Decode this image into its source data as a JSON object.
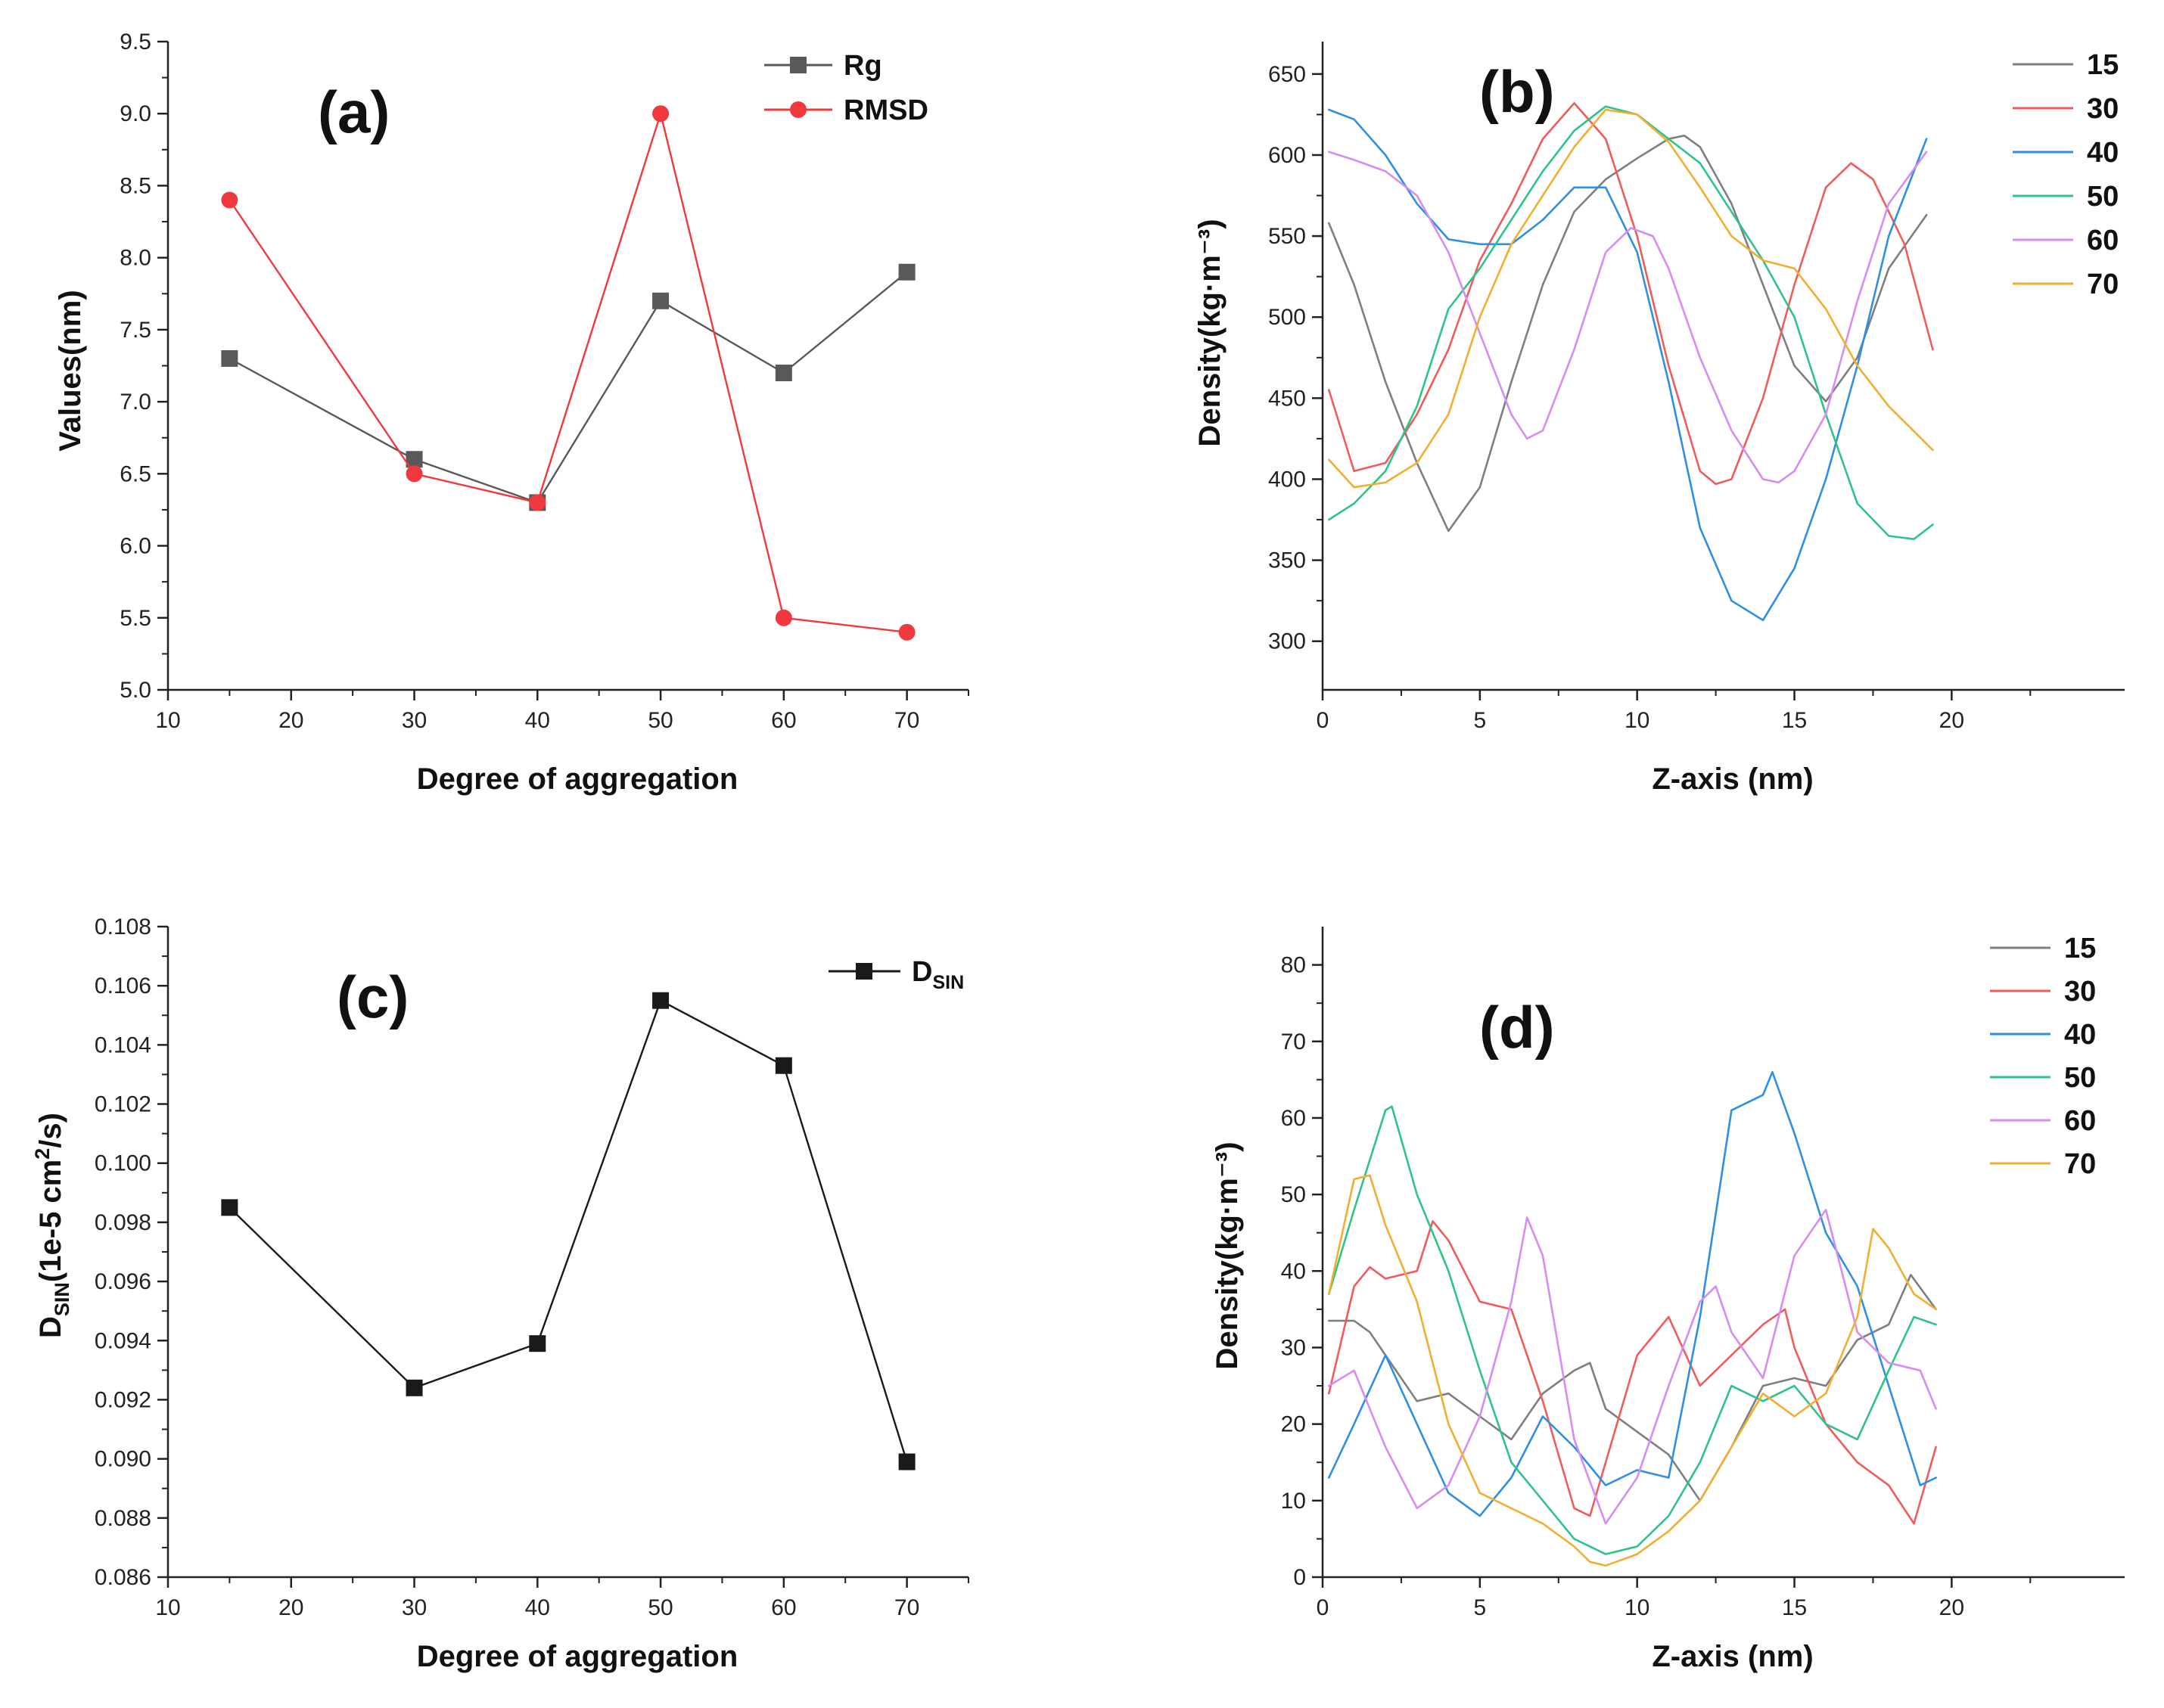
{
  "chart_data": [
    {
      "id": "a",
      "type": "line",
      "panel_label": "(a)",
      "title": "",
      "xlabel": "Degree of aggregation",
      "ylabel": "Values(nm)",
      "xlim": [
        10,
        75
      ],
      "ylim": [
        5.0,
        9.5
      ],
      "xticks": [
        10,
        20,
        30,
        40,
        50,
        60,
        70
      ],
      "xtick_labels": [
        "10",
        "20",
        "30",
        "40",
        "50",
        "60",
        "70"
      ],
      "yticks": [
        5.0,
        5.5,
        6.0,
        6.5,
        7.0,
        7.5,
        8.0,
        8.5,
        9.0,
        9.5
      ],
      "ytick_labels": [
        "5.0",
        "5.5",
        "6.0",
        "6.5",
        "7.0",
        "7.5",
        "8.0",
        "8.5",
        "9.0",
        "9.5"
      ],
      "legend_position": "top-right",
      "series": [
        {
          "name": "Rg",
          "color": "#595959",
          "marker": "square",
          "x": [
            15,
            30,
            40,
            50,
            60,
            70
          ],
          "y": [
            7.3,
            6.6,
            6.3,
            7.7,
            7.2,
            7.9
          ]
        },
        {
          "name": "RMSD",
          "color": "#f0383f",
          "marker": "circle",
          "x": [
            15,
            30,
            40,
            50,
            60,
            70
          ],
          "y": [
            8.4,
            6.5,
            6.3,
            9.0,
            5.5,
            5.4
          ]
        }
      ]
    },
    {
      "id": "b",
      "type": "line",
      "panel_label": "(b)",
      "title": "",
      "xlabel": "Z-axis (nm)",
      "ylabel": "Density(kg·m⁻³)",
      "xlim": [
        0,
        25.5
      ],
      "ylim": [
        270,
        670
      ],
      "xticks": [
        0,
        5,
        10,
        15,
        20
      ],
      "xtick_labels": [
        "0",
        "5",
        "10",
        "15",
        "20"
      ],
      "yticks": [
        300,
        350,
        400,
        450,
        500,
        550,
        600,
        650
      ],
      "ytick_labels": [
        "300",
        "350",
        "400",
        "450",
        "500",
        "550",
        "600",
        "650"
      ],
      "legend_position": "top-right",
      "series": [
        {
          "name": "15",
          "color": "#7f7f7f",
          "x": [
            0.2,
            1,
            2,
            3,
            4,
            5,
            6,
            7,
            8,
            9,
            10,
            11,
            11.5,
            12,
            13,
            14,
            15,
            16,
            17,
            18,
            19.2
          ],
          "y": [
            558,
            520,
            460,
            410,
            368,
            395,
            460,
            520,
            565,
            585,
            598,
            610,
            612,
            605,
            570,
            520,
            470,
            448,
            475,
            530,
            563
          ]
        },
        {
          "name": "30",
          "color": "#f05b5b",
          "x": [
            0.2,
            1,
            2,
            3,
            4,
            5,
            6,
            7,
            8,
            9,
            10,
            11,
            12,
            12.5,
            13,
            14,
            15,
            16,
            16.8,
            17.5,
            18.5,
            19.4
          ],
          "y": [
            455,
            405,
            410,
            440,
            480,
            535,
            570,
            610,
            632,
            610,
            550,
            470,
            405,
            397,
            400,
            450,
            520,
            580,
            595,
            585,
            545,
            480
          ]
        },
        {
          "name": "40",
          "color": "#2e8fe6",
          "x": [
            0.2,
            1,
            2,
            3,
            4,
            5,
            6,
            7,
            8,
            9,
            10,
            11,
            12,
            13,
            14,
            15,
            16,
            17,
            18,
            19.2
          ],
          "y": [
            628,
            622,
            600,
            570,
            548,
            545,
            545,
            560,
            580,
            580,
            540,
            460,
            370,
            325,
            313,
            345,
            400,
            470,
            550,
            610
          ]
        },
        {
          "name": "50",
          "color": "#2ec487",
          "x": [
            0.2,
            1,
            2,
            3,
            4,
            5,
            6,
            7,
            8,
            9,
            10,
            11,
            12,
            13,
            14,
            15,
            16,
            17,
            18,
            18.8,
            19.4
          ],
          "y": [
            375,
            385,
            405,
            445,
            505,
            530,
            560,
            590,
            615,
            630,
            625,
            610,
            595,
            565,
            535,
            500,
            440,
            385,
            365,
            363,
            372
          ]
        },
        {
          "name": "60",
          "color": "#d68cf0",
          "x": [
            0.2,
            1,
            2,
            3,
            4,
            5,
            6,
            6.5,
            7,
            8,
            9,
            9.8,
            10.5,
            11,
            12,
            13,
            14,
            14.5,
            15,
            16,
            17,
            18,
            19.2
          ],
          "y": [
            602,
            597,
            590,
            575,
            540,
            490,
            440,
            425,
            430,
            480,
            540,
            555,
            550,
            530,
            475,
            430,
            400,
            398,
            405,
            440,
            510,
            570,
            602
          ]
        },
        {
          "name": "70",
          "color": "#f2ae33",
          "x": [
            0.2,
            1,
            2,
            3,
            4,
            5,
            6,
            7,
            8,
            9,
            10,
            11,
            12,
            13,
            14,
            15,
            16,
            17,
            18,
            19.4
          ],
          "y": [
            412,
            395,
            398,
            410,
            440,
            500,
            545,
            575,
            605,
            628,
            625,
            608,
            580,
            550,
            535,
            530,
            505,
            470,
            445,
            418
          ]
        }
      ]
    },
    {
      "id": "c",
      "type": "line",
      "panel_label": "(c)",
      "title": "",
      "xlabel": "Degree of aggregation",
      "ylabel": "D_SIN(1e-5 cm²/s)",
      "ylabel_main": "D",
      "ylabel_sub": "SIN",
      "ylabel_rest1": "(1e-5 cm",
      "ylabel_sup": "2",
      "ylabel_rest2": "/s)",
      "xlim": [
        10,
        75
      ],
      "ylim": [
        0.086,
        0.108
      ],
      "xticks": [
        10,
        20,
        30,
        40,
        50,
        60,
        70
      ],
      "xtick_labels": [
        "10",
        "20",
        "30",
        "40",
        "50",
        "60",
        "70"
      ],
      "yticks": [
        0.086,
        0.088,
        0.09,
        0.092,
        0.094,
        0.096,
        0.098,
        0.1,
        0.102,
        0.104,
        0.106,
        0.108
      ],
      "ytick_labels": [
        "0.086",
        "0.088",
        "0.090",
        "0.092",
        "0.094",
        "0.096",
        "0.098",
        "0.100",
        "0.102",
        "0.104",
        "0.106",
        "0.108"
      ],
      "legend_position": "top-right",
      "series": [
        {
          "name": "D_SIN",
          "legend_main": "D",
          "legend_sub": "SIN",
          "color": "#1a1a1a",
          "marker": "square",
          "x": [
            15,
            30,
            40,
            50,
            60,
            70
          ],
          "y": [
            0.0985,
            0.0924,
            0.0939,
            0.1055,
            0.1033,
            0.0899
          ]
        }
      ]
    },
    {
      "id": "d",
      "type": "line",
      "panel_label": "(d)",
      "title": "",
      "xlabel": "Z-axis (nm)",
      "ylabel": "Density(kg·m⁻³)",
      "xlim": [
        0,
        25.5
      ],
      "ylim": [
        0,
        85
      ],
      "xticks": [
        0,
        5,
        10,
        15,
        20
      ],
      "xtick_labels": [
        "0",
        "5",
        "10",
        "15",
        "20"
      ],
      "yticks": [
        0,
        10,
        20,
        30,
        40,
        50,
        60,
        70,
        80
      ],
      "ytick_labels": [
        "0",
        "10",
        "20",
        "30",
        "40",
        "50",
        "60",
        "70",
        "80"
      ],
      "legend_position": "top-right",
      "series": [
        {
          "name": "15",
          "color": "#7f7f7f",
          "x": [
            0.2,
            1,
            1.5,
            2,
            3,
            4,
            5,
            6,
            7,
            8,
            8.5,
            9,
            10,
            11,
            12,
            13,
            14,
            15,
            16,
            17,
            18,
            18.7,
            19.5
          ],
          "y": [
            33.5,
            33.5,
            32,
            29,
            23,
            24,
            21,
            18,
            24,
            27,
            28,
            22,
            19,
            16,
            10,
            17,
            25,
            26,
            25,
            31,
            33,
            39.5,
            35
          ]
        },
        {
          "name": "30",
          "color": "#f05b5b",
          "x": [
            0.2,
            1,
            1.5,
            2,
            3,
            3.5,
            4,
            5,
            6,
            7,
            8,
            8.5,
            9,
            10,
            11,
            12,
            13,
            14,
            14.7,
            15,
            16,
            17,
            18,
            18.8,
            19.5
          ],
          "y": [
            24,
            38,
            40.5,
            39,
            40,
            46.5,
            44,
            36,
            35,
            23,
            9,
            8,
            15,
            29,
            34,
            25,
            29,
            33,
            35,
            30,
            20,
            15,
            12,
            7,
            17
          ]
        },
        {
          "name": "40",
          "color": "#2e8fe6",
          "x": [
            0.2,
            1,
            2,
            3,
            4,
            5,
            6,
            7,
            8,
            9,
            10,
            11,
            12,
            13,
            13.5,
            14,
            14.3,
            15,
            16,
            17,
            18,
            19,
            19.5
          ],
          "y": [
            13,
            20,
            29,
            20,
            11,
            8,
            13,
            21,
            17,
            12,
            14,
            13,
            34,
            61,
            62,
            63,
            66,
            58,
            45,
            38,
            25,
            12,
            13
          ]
        },
        {
          "name": "50",
          "color": "#2ec487",
          "x": [
            0.2,
            1,
            2,
            2.2,
            3,
            4,
            5,
            6,
            7,
            8,
            9,
            10,
            11,
            12,
            13,
            14,
            15,
            16,
            17,
            18,
            18.8,
            19.5
          ],
          "y": [
            37,
            48,
            61,
            61.5,
            50,
            40,
            27,
            15,
            10,
            5,
            3,
            4,
            8,
            15,
            25,
            23,
            25,
            20,
            18,
            27,
            34,
            33
          ]
        },
        {
          "name": "60",
          "color": "#d68cf0",
          "x": [
            0.2,
            1,
            2,
            3,
            4,
            5,
            6,
            6.5,
            7,
            8,
            9,
            10,
            11,
            12,
            12.5,
            13,
            14,
            15,
            16,
            17,
            18,
            19,
            19.5
          ],
          "y": [
            25,
            27,
            17,
            9,
            12,
            21,
            36,
            47,
            42,
            18,
            7,
            13,
            25,
            36,
            38,
            32,
            26,
            42,
            48,
            32,
            28,
            27,
            22
          ]
        },
        {
          "name": "70",
          "color": "#f2ae33",
          "x": [
            0.2,
            1,
            1.5,
            2,
            3,
            4,
            5,
            6,
            7,
            8,
            8.5,
            9,
            10,
            11,
            12,
            13,
            14,
            15,
            16,
            17,
            17.5,
            18,
            18.8,
            19.5
          ],
          "y": [
            37,
            52,
            52.5,
            46,
            36,
            20,
            11,
            9,
            7,
            4,
            2,
            1.5,
            3,
            6,
            10,
            17,
            24,
            21,
            24,
            34,
            45.5,
            43,
            37,
            35
          ]
        }
      ]
    }
  ]
}
